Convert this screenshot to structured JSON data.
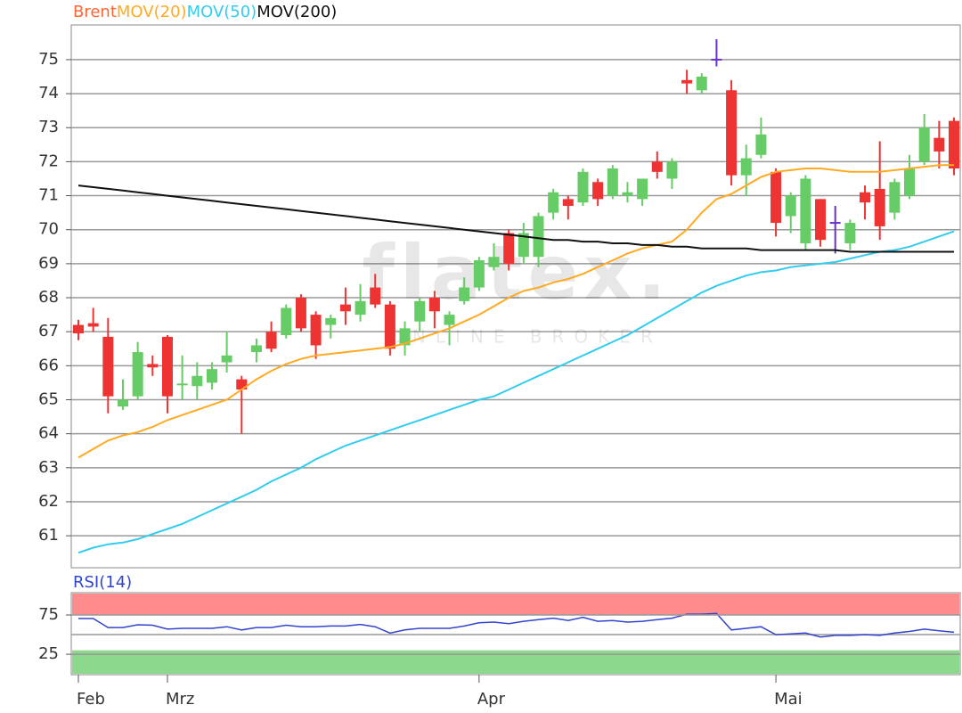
{
  "chart_data": [
    {
      "type": "candlestick",
      "watermark": {
        "title": "flatex.",
        "subtitle": "ONLINE BROKER"
      },
      "categories": [
        "Feb",
        null,
        null,
        null,
        null,
        null,
        "Mrz",
        null,
        null,
        null,
        null,
        null,
        null,
        null,
        null,
        null,
        null,
        null,
        null,
        null,
        null,
        null,
        null,
        null,
        null,
        null,
        null,
        "Apr",
        null,
        null,
        null,
        null,
        null,
        null,
        null,
        null,
        null,
        null,
        null,
        null,
        null,
        null,
        null,
        null,
        null,
        null,
        null,
        "Mai",
        null,
        null,
        null,
        null,
        null,
        null,
        null,
        null,
        null,
        null,
        null,
        null
      ],
      "ylim": [
        60.06,
        76.02
      ],
      "yticks": [
        61,
        62,
        63,
        64,
        65,
        66,
        67,
        68,
        69,
        70,
        71,
        72,
        73,
        74,
        75
      ],
      "grid": true,
      "up_color": "#66cc66",
      "down_color": "#ee3333",
      "doji_color": "#6633cc",
      "series": [
        {
          "name": "Brent",
          "color": "#ff6633",
          "open": [
            67.2,
            67.25,
            66.85,
            64.8,
            65.1,
            66.05,
            66.85,
            65.4,
            65.4,
            65.5,
            66.1,
            65.6,
            66.4,
            67.0,
            66.9,
            68.0,
            67.5,
            67.2,
            67.8,
            67.5,
            68.3,
            67.8,
            66.6,
            67.3,
            68.0,
            67.2,
            67.9,
            68.3,
            68.9,
            69.9,
            69.2,
            69.2,
            70.5,
            70.9,
            70.8,
            71.4,
            71.0,
            71.0,
            70.9,
            72.0,
            71.5,
            74.4,
            74.1,
            75.0,
            74.1,
            71.6,
            72.2,
            71.7,
            70.4,
            69.6,
            70.9,
            70.2,
            69.6,
            71.1,
            71.2,
            70.5,
            71.0,
            72.0,
            72.7,
            73.2
          ],
          "high": [
            67.35,
            67.7,
            67.4,
            65.6,
            66.7,
            66.3,
            66.9,
            66.3,
            66.1,
            66.1,
            67.0,
            65.7,
            66.8,
            67.3,
            67.8,
            68.1,
            67.6,
            67.5,
            68.3,
            68.4,
            68.7,
            67.9,
            67.3,
            68.0,
            68.2,
            67.6,
            68.6,
            69.2,
            69.6,
            70.0,
            70.2,
            70.5,
            71.2,
            71.0,
            71.8,
            71.5,
            71.9,
            71.4,
            71.5,
            72.3,
            72.1,
            74.7,
            74.6,
            75.6,
            74.4,
            72.5,
            73.3,
            71.8,
            71.1,
            71.6,
            70.9,
            70.7,
            70.3,
            71.3,
            72.6,
            71.5,
            72.2,
            73.4,
            73.2,
            73.3
          ],
          "low": [
            66.75,
            67.0,
            64.6,
            64.7,
            65.0,
            65.7,
            64.6,
            65.0,
            65.0,
            65.3,
            65.8,
            64.0,
            66.1,
            66.4,
            66.8,
            67.0,
            66.2,
            66.8,
            67.2,
            67.3,
            67.7,
            66.3,
            66.3,
            67.0,
            67.1,
            66.6,
            67.8,
            68.2,
            68.8,
            68.8,
            69.0,
            68.9,
            70.3,
            70.3,
            70.7,
            70.7,
            70.9,
            70.8,
            70.7,
            71.5,
            71.2,
            74.0,
            74.0,
            74.8,
            71.3,
            71.0,
            72.1,
            69.8,
            69.9,
            69.4,
            69.5,
            69.3,
            69.4,
            70.3,
            69.7,
            70.3,
            70.9,
            71.9,
            71.8,
            71.6
          ],
          "close": [
            66.95,
            67.15,
            65.1,
            65.0,
            66.4,
            65.95,
            65.1,
            65.45,
            65.7,
            65.9,
            66.3,
            65.3,
            66.6,
            66.5,
            67.7,
            67.1,
            66.6,
            67.4,
            67.6,
            67.9,
            67.8,
            66.5,
            67.1,
            67.9,
            67.6,
            67.5,
            68.3,
            69.1,
            69.2,
            69.0,
            69.9,
            70.4,
            71.1,
            70.7,
            71.7,
            70.9,
            71.8,
            71.1,
            71.5,
            71.7,
            72.0,
            74.3,
            74.5,
            75.0,
            71.6,
            72.1,
            72.8,
            70.2,
            71.0,
            71.5,
            69.7,
            70.2,
            70.2,
            70.8,
            70.1,
            71.4,
            71.8,
            73.0,
            72.3,
            71.8
          ]
        },
        {
          "name": "MOV(20)",
          "color": "#ffaa22",
          "values": [
            63.3,
            63.55,
            63.8,
            63.95,
            64.05,
            64.2,
            64.4,
            64.55,
            64.7,
            64.85,
            65.0,
            65.3,
            65.6,
            65.85,
            66.05,
            66.2,
            66.3,
            66.35,
            66.4,
            66.45,
            66.5,
            66.55,
            66.65,
            66.8,
            66.95,
            67.1,
            67.3,
            67.5,
            67.75,
            68.0,
            68.2,
            68.3,
            68.45,
            68.55,
            68.7,
            68.9,
            69.1,
            69.3,
            69.45,
            69.55,
            69.65,
            70.0,
            70.5,
            70.9,
            71.05,
            71.3,
            71.55,
            71.7,
            71.75,
            71.8,
            71.8,
            71.75,
            71.7,
            71.7,
            71.7,
            71.75,
            71.8,
            71.85,
            71.9,
            71.9
          ]
        },
        {
          "name": "MOV(50)",
          "color": "#33ccee",
          "values": [
            60.5,
            60.65,
            60.75,
            60.8,
            60.9,
            61.05,
            61.2,
            61.35,
            61.55,
            61.75,
            61.95,
            62.15,
            62.35,
            62.6,
            62.8,
            63.0,
            63.25,
            63.45,
            63.65,
            63.8,
            63.95,
            64.1,
            64.25,
            64.4,
            64.55,
            64.7,
            64.85,
            65.0,
            65.1,
            65.3,
            65.5,
            65.7,
            65.9,
            66.1,
            66.3,
            66.5,
            66.7,
            66.9,
            67.15,
            67.4,
            67.65,
            67.9,
            68.15,
            68.35,
            68.5,
            68.65,
            68.75,
            68.8,
            68.9,
            68.95,
            69.0,
            69.05,
            69.15,
            69.25,
            69.35,
            69.4,
            69.5,
            69.65,
            69.8,
            69.95
          ]
        },
        {
          "name": "MOV(200)",
          "color": "#111111",
          "values": [
            71.3,
            71.25,
            71.2,
            71.15,
            71.1,
            71.05,
            71.0,
            70.95,
            70.9,
            70.85,
            70.8,
            70.75,
            70.7,
            70.65,
            70.6,
            70.55,
            70.5,
            70.45,
            70.4,
            70.35,
            70.3,
            70.25,
            70.2,
            70.15,
            70.1,
            70.05,
            70.0,
            69.95,
            69.9,
            69.85,
            69.8,
            69.75,
            69.7,
            69.7,
            69.65,
            69.65,
            69.6,
            69.6,
            69.55,
            69.55,
            69.5,
            69.5,
            69.45,
            69.45,
            69.45,
            69.45,
            69.4,
            69.4,
            69.4,
            69.4,
            69.4,
            69.4,
            69.35,
            69.35,
            69.35,
            69.35,
            69.35,
            69.35,
            69.35,
            69.35
          ]
        }
      ]
    },
    {
      "type": "line",
      "ylim": [
        -1,
        103.4
      ],
      "yticks": [
        25,
        75
      ],
      "grid": true,
      "midline": 50,
      "overbought": 75,
      "overbought_color": "#ff8c8c",
      "oversold": 30,
      "oversold_color": "#8cd88c",
      "series": [
        {
          "name": "RSI(14)",
          "color": "#3344cc",
          "values": [
            70.5,
            70.5,
            59,
            59,
            62.5,
            62,
            57,
            58,
            58,
            58,
            60,
            56,
            59,
            59,
            62,
            60,
            60,
            61,
            61,
            63,
            60,
            52,
            56,
            58,
            58,
            58,
            61,
            65,
            66,
            64,
            67,
            69,
            71,
            68,
            72,
            67,
            68,
            66,
            67,
            69,
            71,
            76,
            76,
            77,
            56,
            58,
            60,
            50,
            51,
            52,
            47,
            49,
            49,
            50,
            49,
            52,
            54,
            57,
            55,
            53
          ]
        }
      ]
    }
  ]
}
